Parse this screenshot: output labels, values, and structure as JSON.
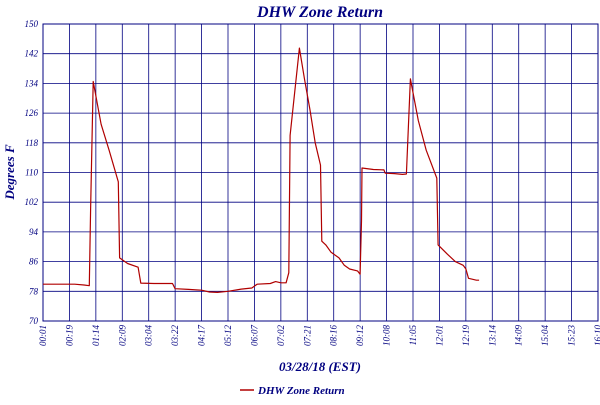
{
  "chart_data": {
    "type": "line",
    "title": "DHW Zone Return",
    "xlabel": "03/28/18 (EST)",
    "ylabel": "Degrees F",
    "ylim": [
      70,
      150
    ],
    "y_ticks": [
      "70",
      "78",
      "86",
      "94",
      "102",
      "110",
      "118",
      "126",
      "134",
      "142",
      "150"
    ],
    "x_ticks": [
      "00:01",
      "00:19",
      "01:14",
      "02:09",
      "03:04",
      "03:22",
      "04:17",
      "05:12",
      "06:07",
      "07:02",
      "07:21",
      "08:16",
      "09:12",
      "10:08",
      "11:05",
      "12:01",
      "12:19",
      "13:14",
      "14:09",
      "15:04",
      "15:23",
      "16:10"
    ],
    "grid": true,
    "legend_position": "bottom",
    "series": [
      {
        "name": "DHW Zone Return",
        "color": "#b00000",
        "points": [
          [
            0,
            79.9
          ],
          [
            1.2,
            79.9
          ],
          [
            1.55,
            79.7
          ],
          [
            1.75,
            79.5
          ],
          [
            1.8,
            100
          ],
          [
            1.9,
            134.5
          ],
          [
            2.2,
            123
          ],
          [
            2.5,
            116
          ],
          [
            2.85,
            107.5
          ],
          [
            2.9,
            87
          ],
          [
            3.1,
            86
          ],
          [
            3.2,
            85.5
          ],
          [
            3.6,
            84.5
          ],
          [
            3.7,
            80.2
          ],
          [
            4.2,
            80.1
          ],
          [
            4.9,
            80.1
          ],
          [
            5.0,
            78.7
          ],
          [
            5.5,
            78.5
          ],
          [
            6.0,
            78.3
          ],
          [
            6.3,
            77.8
          ],
          [
            6.6,
            77.7
          ],
          [
            7.0,
            78.0
          ],
          [
            7.5,
            78.6
          ],
          [
            7.9,
            78.9
          ],
          [
            8.1,
            79.9
          ],
          [
            8.6,
            80.1
          ],
          [
            8.8,
            80.6
          ],
          [
            9.0,
            80.3
          ],
          [
            9.2,
            80.3
          ],
          [
            9.3,
            83
          ],
          [
            9.35,
            120
          ],
          [
            9.7,
            143.5
          ],
          [
            9.9,
            135
          ],
          [
            10.1,
            127
          ],
          [
            10.3,
            118
          ],
          [
            10.5,
            112
          ],
          [
            10.55,
            91.5
          ],
          [
            10.7,
            90.5
          ],
          [
            10.9,
            88.5
          ],
          [
            11.2,
            87
          ],
          [
            11.4,
            85
          ],
          [
            11.6,
            84
          ],
          [
            11.9,
            83.5
          ],
          [
            12.0,
            82.6
          ],
          [
            12.05,
            97
          ],
          [
            12.07,
            111.2
          ],
          [
            12.5,
            110.8
          ],
          [
            12.9,
            110.7
          ],
          [
            12.95,
            109.8
          ],
          [
            13.3,
            109.7
          ],
          [
            13.6,
            109.5
          ],
          [
            13.75,
            109.6
          ],
          [
            13.9,
            135.2
          ],
          [
            14.2,
            124
          ],
          [
            14.5,
            116
          ],
          [
            14.9,
            108.5
          ],
          [
            14.95,
            90.5
          ],
          [
            15.3,
            88
          ],
          [
            15.6,
            86
          ],
          [
            15.9,
            85
          ],
          [
            16.0,
            84
          ],
          [
            16.1,
            81.5
          ],
          [
            16.4,
            81
          ],
          [
            16.5,
            81
          ]
        ]
      }
    ]
  }
}
